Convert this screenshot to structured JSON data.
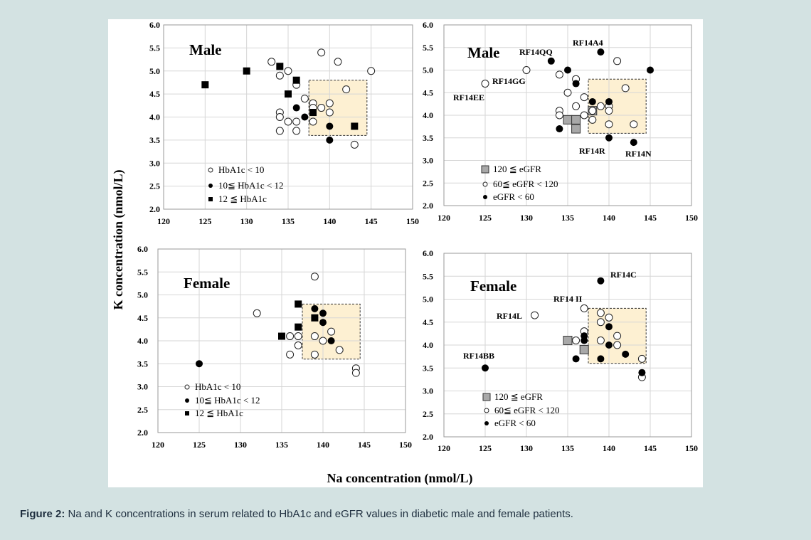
{
  "caption": {
    "label": "Figure 2:",
    "text": " Na and K concentrations in serum related to HbA1c and eGFR values in diabetic male and female patients."
  },
  "y_axis_title": "K concentration (nmol/L)",
  "x_axis_title": "Na concentration (nmol/L)",
  "colors": {
    "background": "#d3e2e2",
    "panel": "#ffffff",
    "target_box": "#fdf0d2",
    "gray_marker": "#a8a8a8"
  },
  "chart_data": [
    {
      "type": "scatter",
      "title": "Male",
      "xlim": [
        120,
        150
      ],
      "ylim": [
        2.0,
        6.0
      ],
      "xticks": [
        "120",
        "125",
        "130",
        "135",
        "140",
        "145",
        "150"
      ],
      "yticks": [
        "2.0",
        "2.5",
        "3.0",
        "3.5",
        "4.0",
        "4.5",
        "5.0",
        "5.5",
        "6.0"
      ],
      "grid": true,
      "target_range": {
        "x": [
          137.5,
          144.5
        ],
        "y": [
          3.6,
          4.8
        ]
      },
      "legend": [
        {
          "marker": "open-circle",
          "label": "HbA1c < 10"
        },
        {
          "marker": "filled-circle",
          "label": "10≦ HbA1c < 12"
        },
        {
          "marker": "filled-square",
          "label": "12 ≦ HbA1c"
        }
      ],
      "series": [
        {
          "marker": "open-circle",
          "points": [
            [
              133,
              5.2
            ],
            [
              134,
              4.9
            ],
            [
              135,
              5.0
            ],
            [
              139,
              5.4
            ],
            [
              141,
              5.2
            ],
            [
              145,
              5.0
            ],
            [
              136,
              4.7
            ],
            [
              137,
              4.4
            ],
            [
              138,
              4.3
            ],
            [
              138,
              4.2
            ],
            [
              139,
              4.2
            ],
            [
              140,
              4.3
            ],
            [
              140,
              4.1
            ],
            [
              142,
              4.6
            ],
            [
              134,
              4.1
            ],
            [
              134,
              4.0
            ],
            [
              135,
              3.9
            ],
            [
              136,
              3.9
            ],
            [
              138,
              3.9
            ],
            [
              134,
              3.7
            ],
            [
              136,
              3.7
            ],
            [
              143,
              3.4
            ]
          ]
        },
        {
          "marker": "filled-circle",
          "points": [
            [
              136,
              4.2
            ],
            [
              137,
              4.0
            ],
            [
              140,
              3.8
            ],
            [
              140,
              3.5
            ]
          ]
        },
        {
          "marker": "filled-square",
          "points": [
            [
              125,
              4.7
            ],
            [
              130,
              5.0
            ],
            [
              134,
              5.1
            ],
            [
              136,
              4.8
            ],
            [
              135,
              4.5
            ],
            [
              138,
              4.1
            ],
            [
              143,
              3.8
            ]
          ]
        }
      ],
      "annotations": []
    },
    {
      "type": "scatter",
      "title": "Male",
      "xlim": [
        120,
        150
      ],
      "ylim": [
        2.0,
        6.0
      ],
      "xticks": [
        "120",
        "125",
        "130",
        "135",
        "140",
        "145",
        "150"
      ],
      "yticks": [
        "2.0",
        "2.5",
        "3.0",
        "3.5",
        "4.0",
        "4.5",
        "5.0",
        "5.5",
        "6.0"
      ],
      "grid": true,
      "target_range": {
        "x": [
          137.5,
          144.5
        ],
        "y": [
          3.6,
          4.8
        ]
      },
      "legend": [
        {
          "marker": "gray-square",
          "label": "120 ≦ eGFR"
        },
        {
          "marker": "open-circle",
          "label": "60≦ eGFR < 120"
        },
        {
          "marker": "filled-circle",
          "label": "eGFR < 60"
        }
      ],
      "series": [
        {
          "marker": "gray-square",
          "points": [
            [
              135,
              3.9
            ],
            [
              136,
              3.9
            ],
            [
              136,
              3.7
            ],
            [
              138,
              4.1
            ]
          ]
        },
        {
          "marker": "open-circle",
          "points": [
            [
              125,
              4.7
            ],
            [
              130,
              5.0
            ],
            [
              134,
              4.9
            ],
            [
              135,
              4.5
            ],
            [
              136,
              4.8
            ],
            [
              137,
              4.4
            ],
            [
              136,
              4.2
            ],
            [
              134,
              4.1
            ],
            [
              134,
              4.0
            ],
            [
              137,
              4.0
            ],
            [
              138,
              4.1
            ],
            [
              138,
              3.9
            ],
            [
              139,
              4.2
            ],
            [
              140,
              4.2
            ],
            [
              140,
              4.1
            ],
            [
              140,
              3.8
            ],
            [
              141,
              5.2
            ],
            [
              142,
              4.6
            ],
            [
              143,
              3.8
            ]
          ]
        },
        {
          "marker": "filled-circle",
          "points": [
            [
              133,
              5.2
            ],
            [
              135,
              5.0
            ],
            [
              139,
              5.4
            ],
            [
              145,
              5.0
            ],
            [
              136,
              4.7
            ],
            [
              138,
              4.3
            ],
            [
              140,
              4.3
            ],
            [
              134,
              3.7
            ],
            [
              140,
              3.5
            ],
            [
              143,
              3.4
            ]
          ]
        }
      ],
      "annotations": [
        "RF14A4",
        "RF14QQ",
        "RF14GG",
        "RF14EE",
        "RF14R",
        "RF14N"
      ]
    },
    {
      "type": "scatter",
      "title": "Female",
      "xlim": [
        120,
        150
      ],
      "ylim": [
        2.0,
        6.0
      ],
      "xticks": [
        "120",
        "125",
        "130",
        "135",
        "140",
        "145",
        "150"
      ],
      "yticks": [
        "2.0",
        "2.5",
        "3.0",
        "3.5",
        "4.0",
        "4.5",
        "5.0",
        "5.5",
        "6.0"
      ],
      "grid": true,
      "target_range": {
        "x": [
          137.5,
          144.5
        ],
        "y": [
          3.6,
          4.8
        ]
      },
      "legend": [
        {
          "marker": "open-circle",
          "label": "HbA1c < 10"
        },
        {
          "marker": "filled-circle",
          "label": "10≦ HbA1c < 12"
        },
        {
          "marker": "filled-square",
          "label": "12 ≦ HbA1c"
        }
      ],
      "series": [
        {
          "marker": "open-circle",
          "points": [
            [
              132,
              4.6
            ],
            [
              139,
              5.4
            ],
            [
              136,
              4.1
            ],
            [
              137,
              4.1
            ],
            [
              137,
              3.9
            ],
            [
              136,
              3.7
            ],
            [
              139,
              4.1
            ],
            [
              139,
              3.7
            ],
            [
              140,
              4.0
            ],
            [
              141,
              4.2
            ],
            [
              142,
              3.8
            ],
            [
              144,
              3.4
            ],
            [
              144,
              3.3
            ]
          ]
        },
        {
          "marker": "filled-circle",
          "points": [
            [
              125,
              3.5
            ],
            [
              139,
              4.7
            ],
            [
              140,
              4.6
            ],
            [
              140,
              4.4
            ],
            [
              141,
              4.0
            ]
          ]
        },
        {
          "marker": "filled-square",
          "points": [
            [
              137,
              4.8
            ],
            [
              139,
              4.5
            ],
            [
              137,
              4.3
            ],
            [
              135,
              4.1
            ]
          ]
        }
      ],
      "annotations": []
    },
    {
      "type": "scatter",
      "title": "Female",
      "xlim": [
        120,
        150
      ],
      "ylim": [
        2.0,
        6.0
      ],
      "xticks": [
        "120",
        "125",
        "130",
        "135",
        "140",
        "145",
        "150"
      ],
      "yticks": [
        "2.0",
        "2.5",
        "3.0",
        "3.5",
        "4.0",
        "4.5",
        "5.0",
        "5.5",
        "6.0"
      ],
      "grid": true,
      "target_range": {
        "x": [
          137.5,
          144.5
        ],
        "y": [
          3.6,
          4.8
        ]
      },
      "legend": [
        {
          "marker": "gray-square",
          "label": "120 ≦ eGFR"
        },
        {
          "marker": "open-circle",
          "label": "60≦ eGFR < 120"
        },
        {
          "marker": "filled-circle",
          "label": "eGFR < 60"
        }
      ],
      "series": [
        {
          "marker": "gray-square",
          "points": [
            [
              135,
              4.1
            ],
            [
              137,
              3.9
            ]
          ]
        },
        {
          "marker": "open-circle",
          "points": [
            [
              131,
              4.65
            ],
            [
              137,
              4.8
            ],
            [
              139,
              4.7
            ],
            [
              139,
              4.5
            ],
            [
              140,
              4.6
            ],
            [
              137,
              4.3
            ],
            [
              136,
              4.1
            ],
            [
              139,
              4.1
            ],
            [
              141,
              4.2
            ],
            [
              141,
              4.0
            ],
            [
              144,
              3.7
            ],
            [
              144,
              3.3
            ]
          ]
        },
        {
          "marker": "filled-circle",
          "points": [
            [
              139,
              5.4
            ],
            [
              137,
              4.2
            ],
            [
              137,
              4.1
            ],
            [
              140,
              4.4
            ],
            [
              140,
              4.0
            ],
            [
              142,
              3.8
            ],
            [
              136,
              3.7
            ],
            [
              139,
              3.7
            ],
            [
              125,
              3.5
            ],
            [
              144,
              3.4
            ]
          ]
        }
      ],
      "annotations": [
        "RF14C",
        "RF14 II",
        "RF14L",
        "RF14BB"
      ]
    }
  ]
}
